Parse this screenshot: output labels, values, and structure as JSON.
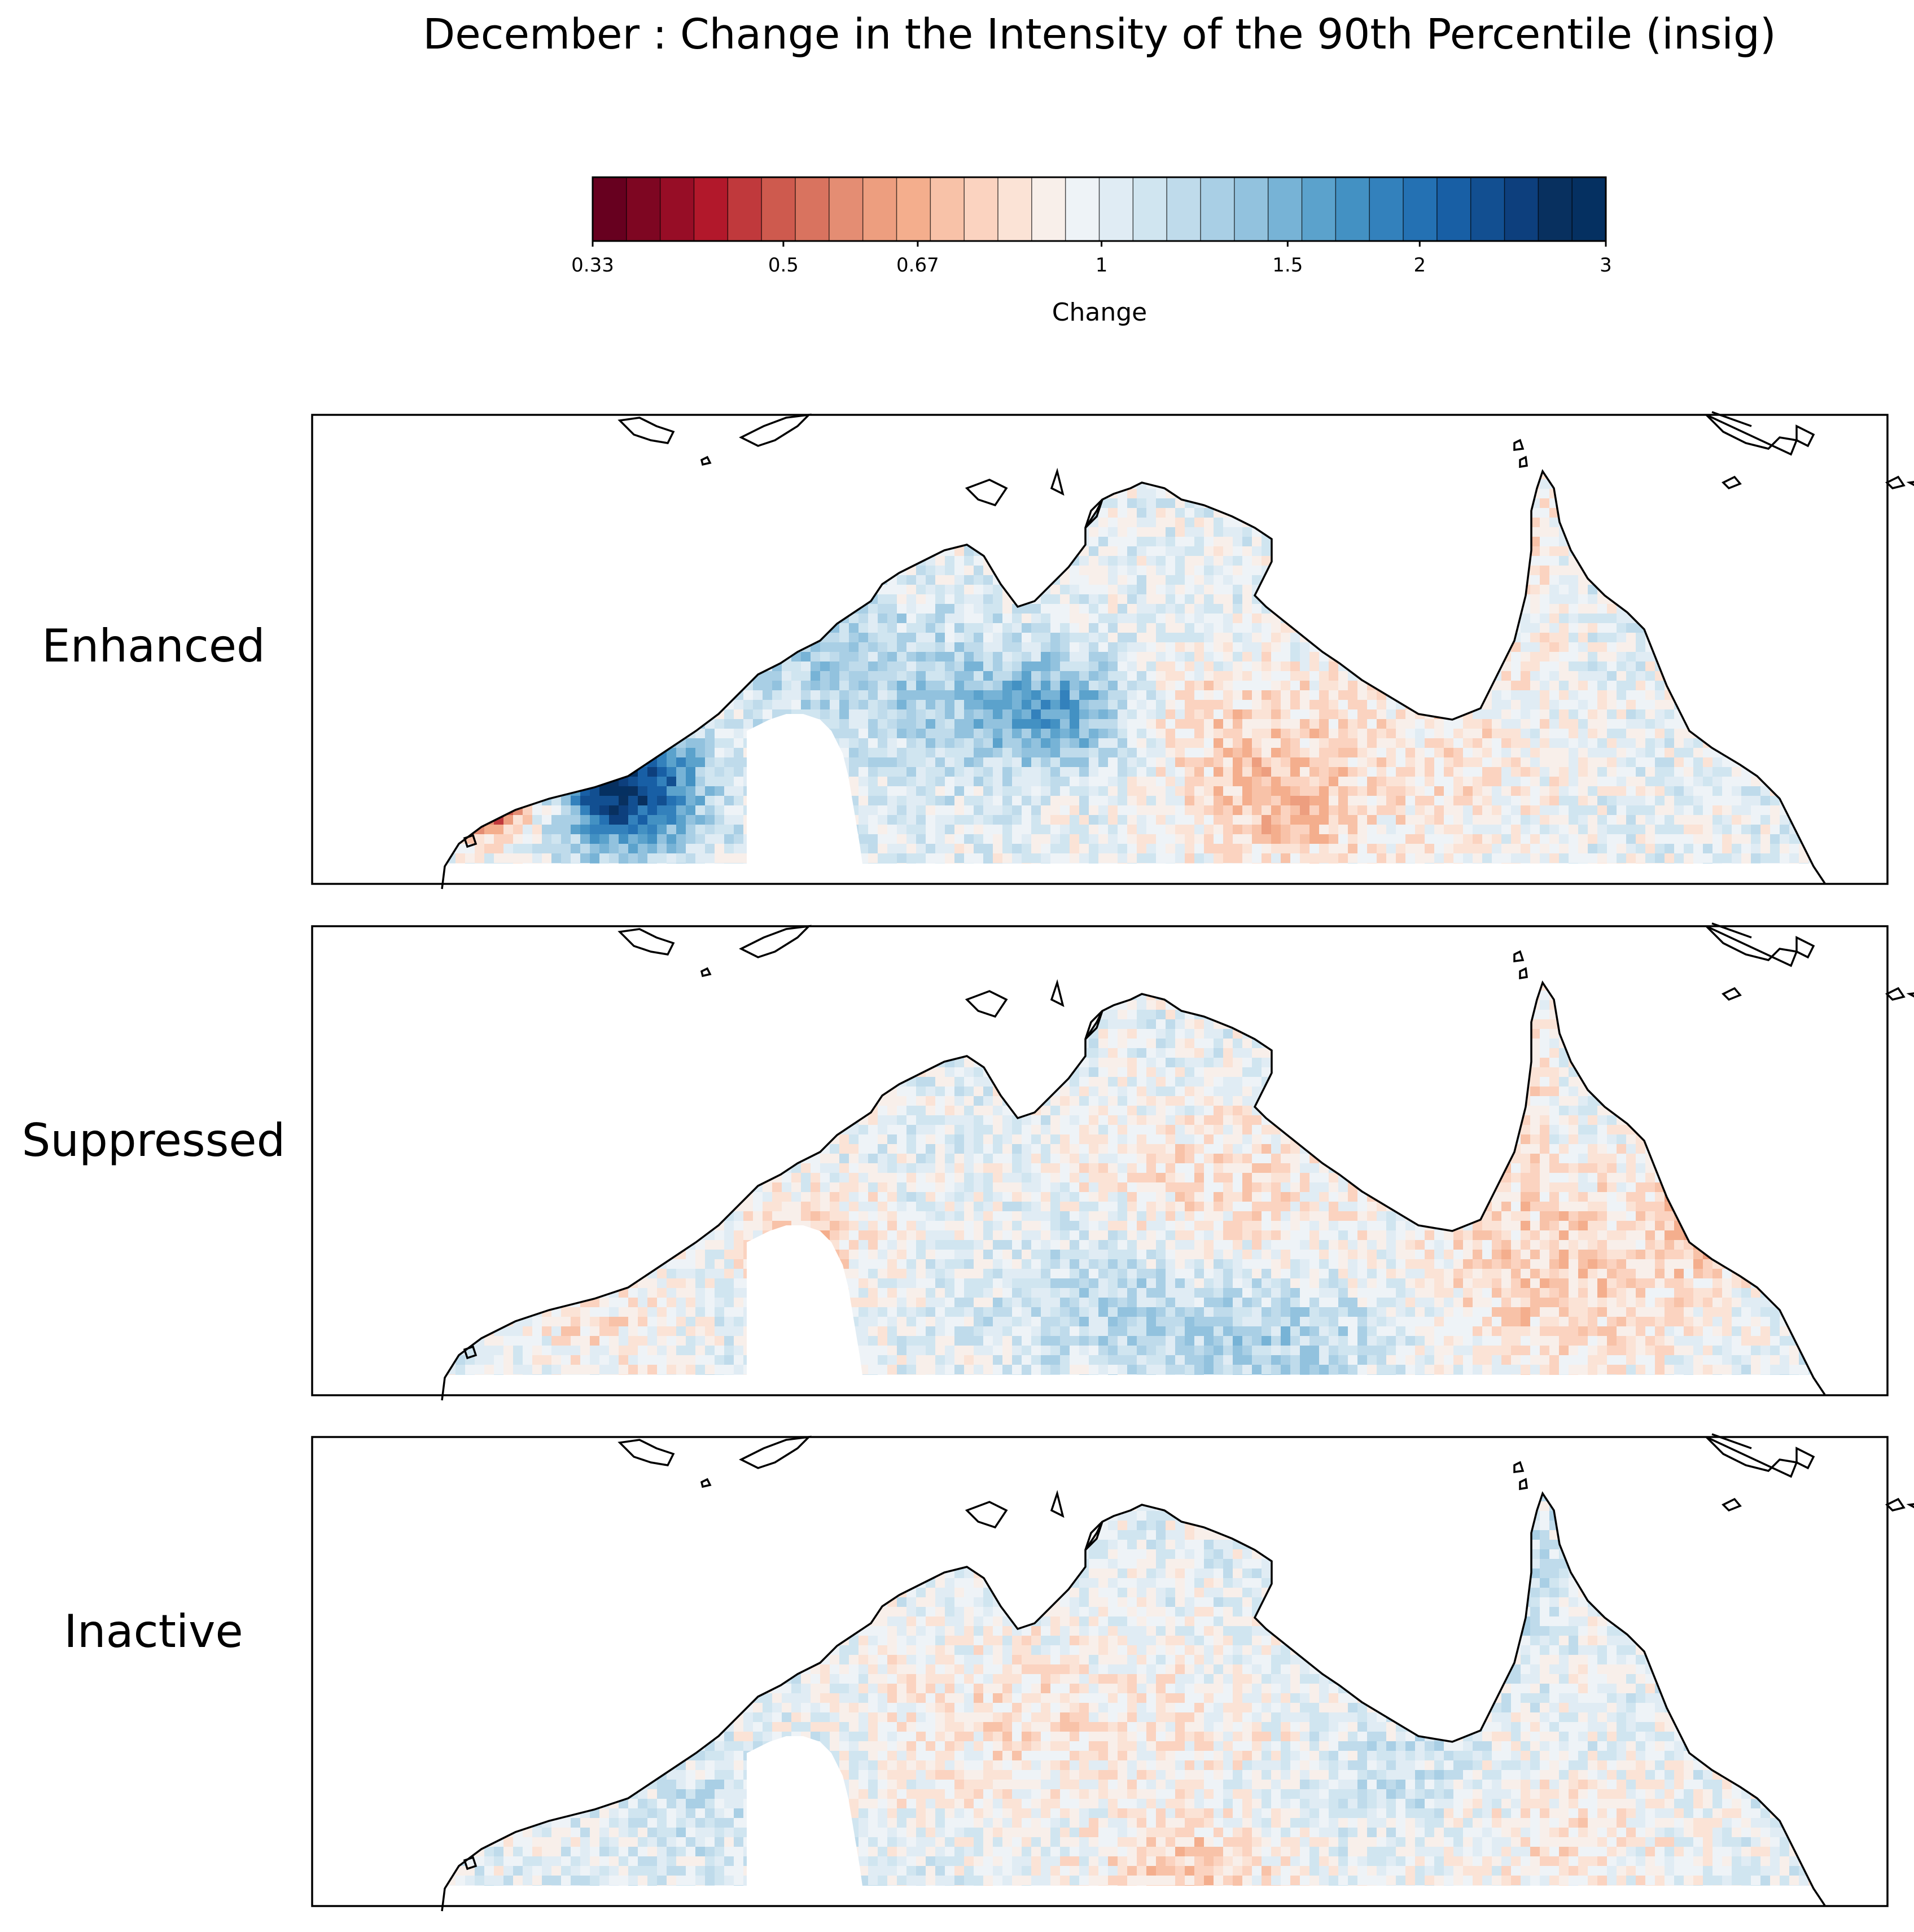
{
  "chart_data": {
    "type": "heatmap",
    "title": "December : Change in the Intensity of the 90th Percentile (insig)",
    "colorbar": {
      "label": "Change",
      "ticks": [
        "0.33",
        "0.5",
        "0.67",
        "1",
        "1.5",
        "2",
        "3"
      ],
      "range": [
        0.33,
        3
      ],
      "scale": "log",
      "colors": [
        "#67001f",
        "#7e0622",
        "#970d26",
        "#b2182b",
        "#c0393c",
        "#ce5a4e",
        "#d9735f",
        "#e48d73",
        "#ed9e7f",
        "#f4ae8d",
        "#f8c2a8",
        "#fbd3c0",
        "#fbe3d6",
        "#f8efea",
        "#eef3f7",
        "#e0ecf4",
        "#d0e5f0",
        "#bfdbeb",
        "#a9cfe5",
        "#92c2de",
        "#77b3d6",
        "#5ba2cc",
        "#4391c3",
        "#3381bc",
        "#2471b3",
        "#185fa5",
        "#124f91",
        "#0d3f7d",
        "#08305f",
        "#053061"
      ]
    },
    "panels": [
      {
        "label": "Enhanced"
      },
      {
        "label": "Suppressed"
      },
      {
        "label": "Inactive"
      }
    ]
  }
}
